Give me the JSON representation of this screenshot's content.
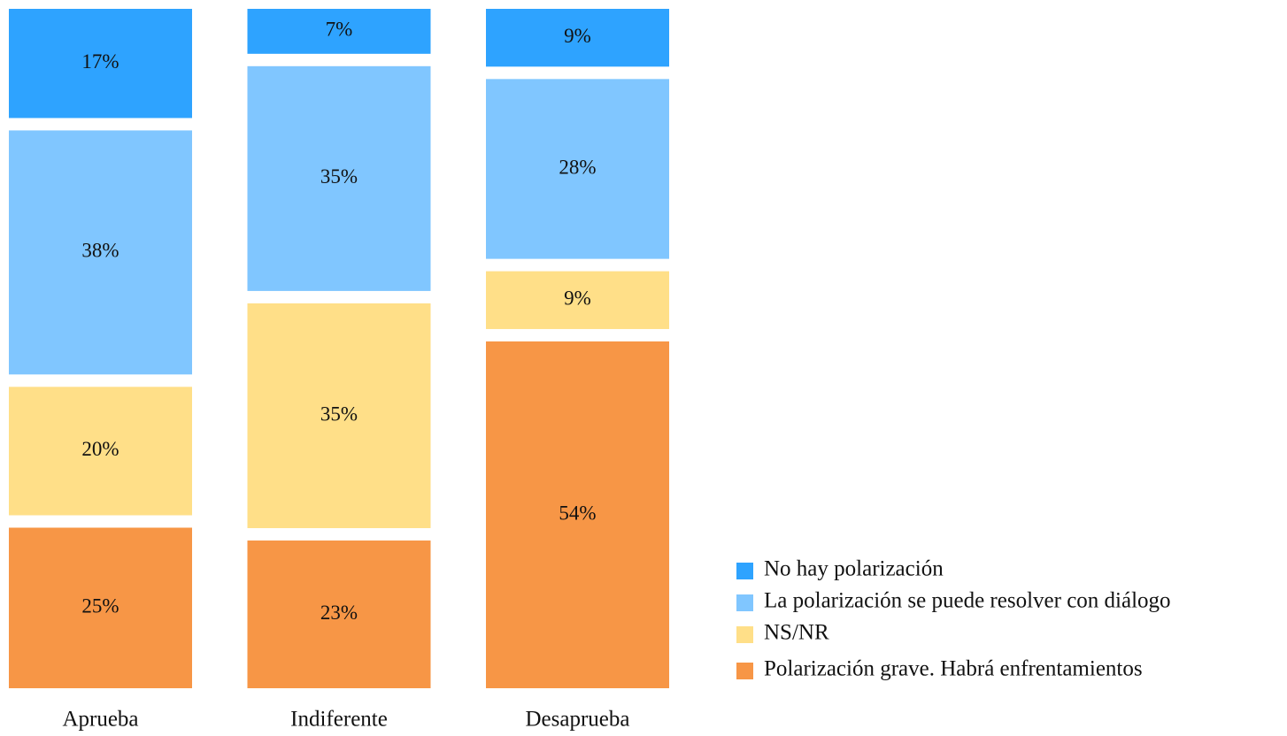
{
  "chart_data": {
    "type": "stacked_bar",
    "categories": [
      "Aprueba",
      "Indiferente",
      "Desaprueba"
    ],
    "ylim": [
      0,
      100
    ],
    "series": [
      {
        "name": "No hay polarización",
        "color": "#2ea3ff",
        "values": [
          17,
          7,
          9
        ],
        "value_labels": [
          "17%",
          "7%",
          "9%"
        ]
      },
      {
        "name": "La polarización se puede resolver con diálogo",
        "color": "#80c6ff",
        "values": [
          38,
          35,
          28
        ],
        "value_labels": [
          "38%",
          "35%",
          "28%"
        ]
      },
      {
        "name": "NS/NR",
        "color": "#ffdf88",
        "values": [
          20,
          35,
          9
        ],
        "value_labels": [
          "20%",
          "35%",
          "9%"
        ]
      },
      {
        "name": "Polarización grave. Habrá enfrentamientos",
        "color": "#f79646",
        "values": [
          25,
          23,
          54
        ],
        "value_labels": [
          "25%",
          "23%",
          "54%"
        ]
      }
    ],
    "legend": "right"
  }
}
